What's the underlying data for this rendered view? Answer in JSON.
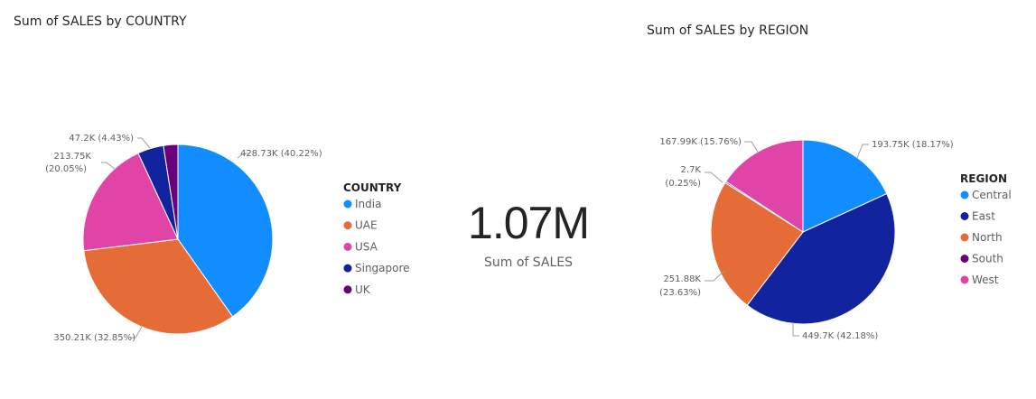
{
  "card": {
    "value": "1.07M",
    "label": "Sum of SALES"
  },
  "chart_data": [
    {
      "type": "pie",
      "title": "Sum of SALES by COUNTRY",
      "legend_title": "COUNTRY",
      "legend_placement": "right",
      "slices": [
        {
          "name": "India",
          "value": 428.73,
          "label": "428.73K (40.22%)",
          "color": "#118DFF"
        },
        {
          "name": "UAE",
          "value": 350.21,
          "label": "350.21K (32.85%)",
          "color": "#E66C37"
        },
        {
          "name": "USA",
          "value": 213.75,
          "label": "213.75K (20.05%)",
          "color": "#E044A7"
        },
        {
          "name": "Singapore",
          "value": 47.2,
          "label": "47.2K (4.43%)",
          "color": "#12239E"
        },
        {
          "name": "UK",
          "value": 26.19,
          "label": "",
          "color": "#6B007B"
        }
      ]
    },
    {
      "type": "pie",
      "title": "Sum of SALES by REGION",
      "legend_title": "REGION",
      "legend_placement": "right",
      "slices": [
        {
          "name": "Central",
          "value": 193.75,
          "label": "193.75K (18.17%)",
          "color": "#118DFF"
        },
        {
          "name": "East",
          "value": 449.7,
          "label": "449.7K (42.18%)",
          "color": "#12239E"
        },
        {
          "name": "North",
          "value": 251.88,
          "label": "251.88K (23.63%)",
          "color": "#E66C37"
        },
        {
          "name": "South",
          "value": 2.7,
          "label": "2.7K (0.25%)",
          "color": "#6B007B"
        },
        {
          "name": "West",
          "value": 167.99,
          "label": "167.99K (15.76%)",
          "color": "#E044A7"
        }
      ]
    }
  ]
}
